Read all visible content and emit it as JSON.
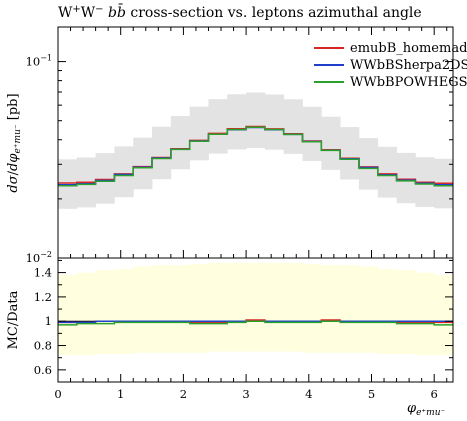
{
  "chart_data": [
    {
      "type": "line",
      "panel": "main",
      "title": "W⁺W⁻bb̄ cross-section vs. leptons azimuthal angle",
      "ylabel": "dσ/dφ_{e⁺mu⁻} [pb]",
      "yscale": "log",
      "ylim": [
        0.01,
        0.15
      ],
      "yticks": [
        {
          "v": 0.1,
          "base": "10",
          "exp": "−1"
        },
        {
          "v": 0.01,
          "base": "10",
          "exp": "−2"
        }
      ],
      "xlim": [
        0,
        6.3
      ],
      "x_edges": [
        0,
        0.3,
        0.6,
        0.9,
        1.2,
        1.5,
        1.8,
        2.1,
        2.4,
        2.7,
        3.0,
        3.3,
        3.6,
        3.9,
        4.2,
        4.5,
        4.8,
        5.1,
        5.4,
        5.7,
        6.0,
        6.3
      ],
      "band": {
        "color": "#e3e3e3",
        "lo": [
          0.0178,
          0.0181,
          0.0189,
          0.0204,
          0.0224,
          0.0252,
          0.0283,
          0.0314,
          0.034,
          0.0357,
          0.0363,
          0.0356,
          0.0339,
          0.0312,
          0.0281,
          0.0251,
          0.0223,
          0.0203,
          0.019,
          0.0182,
          0.0179
        ],
        "hi": [
          0.0318,
          0.0325,
          0.0342,
          0.037,
          0.041,
          0.0466,
          0.0528,
          0.059,
          0.0644,
          0.0682,
          0.0696,
          0.068,
          0.0643,
          0.0589,
          0.0524,
          0.0464,
          0.0408,
          0.0368,
          0.0343,
          0.0326,
          0.032
        ]
      },
      "series": [
        {
          "name": "emubB_homemade",
          "color": "#d62728",
          "values": [
            0.0241,
            0.0243,
            0.0251,
            0.0268,
            0.0292,
            0.0325,
            0.036,
            0.0397,
            0.0431,
            0.0455,
            0.0467,
            0.0454,
            0.0429,
            0.0394,
            0.0356,
            0.0322,
            0.0291,
            0.0268,
            0.0252,
            0.0243,
            0.024
          ]
        },
        {
          "name": "WWbBSherpa2DS",
          "color": "#1f3fcc",
          "values": [
            0.0236,
            0.0239,
            0.0248,
            0.0266,
            0.029,
            0.0323,
            0.0358,
            0.0394,
            0.0427,
            0.045,
            0.0462,
            0.045,
            0.0426,
            0.0392,
            0.0354,
            0.032,
            0.0289,
            0.0265,
            0.0249,
            0.024,
            0.0236
          ]
        },
        {
          "name": "WWbBPOWHEGS",
          "color": "#2ca02c",
          "values": [
            0.0233,
            0.0237,
            0.0246,
            0.0263,
            0.0288,
            0.0321,
            0.0357,
            0.0393,
            0.0427,
            0.0451,
            0.0463,
            0.0451,
            0.0426,
            0.0391,
            0.0353,
            0.0318,
            0.0286,
            0.0263,
            0.0247,
            0.0238,
            0.0233
          ]
        }
      ]
    },
    {
      "type": "line",
      "panel": "ratio",
      "ylabel": "MC/Data",
      "xlabel": "φ_{e⁺mu⁻}",
      "ylim": [
        0.5,
        1.52
      ],
      "yticks": [
        "0.6",
        "0.8",
        "1",
        "1.2",
        "1.4"
      ],
      "xlim": [
        0,
        6.3
      ],
      "xticks": [
        "0",
        "1",
        "2",
        "3",
        "4",
        "5",
        "6"
      ],
      "x_edges": [
        0,
        0.3,
        0.6,
        0.9,
        1.2,
        1.5,
        1.8,
        2.1,
        2.4,
        2.7,
        3.0,
        3.3,
        3.6,
        3.9,
        4.2,
        4.5,
        4.8,
        5.1,
        5.4,
        5.7,
        6.0,
        6.3
      ],
      "band": {
        "color": "#ffffe0",
        "lo": [
          0.72,
          0.72,
          0.73,
          0.73,
          0.74,
          0.74,
          0.74,
          0.74,
          0.75,
          0.75,
          0.75,
          0.75,
          0.75,
          0.74,
          0.74,
          0.74,
          0.74,
          0.73,
          0.73,
          0.72,
          0.72
        ],
        "hi": [
          1.38,
          1.4,
          1.42,
          1.43,
          1.45,
          1.46,
          1.46,
          1.47,
          1.48,
          1.48,
          1.48,
          1.48,
          1.48,
          1.47,
          1.46,
          1.46,
          1.45,
          1.43,
          1.42,
          1.4,
          1.38
        ]
      },
      "series": [
        {
          "name": "emubB_homemade",
          "color": "#d62728",
          "values": [
            0.99,
            0.99,
            1.0,
            1.0,
            1.0,
            1.0,
            1.0,
            0.99,
            0.99,
            1.0,
            1.01,
            1.0,
            1.0,
            1.0,
            1.01,
            1.0,
            1.0,
            1.0,
            0.99,
            0.99,
            0.99
          ]
        },
        {
          "name": "WWbBSherpa2DS",
          "color": "#1f3fcc",
          "values": [
            0.99,
            0.99,
            1.0,
            1.0,
            1.0,
            1.0,
            1.0,
            1.0,
            1.0,
            1.0,
            1.0,
            1.0,
            1.0,
            1.0,
            1.0,
            1.0,
            1.0,
            1.0,
            1.0,
            1.0,
            1.0
          ]
        },
        {
          "name": "WWbBPOWHEGS",
          "color": "#2ca02c",
          "values": [
            0.97,
            0.98,
            0.98,
            0.99,
            0.99,
            0.99,
            0.99,
            0.98,
            0.98,
            0.99,
            1.0,
            0.99,
            0.99,
            0.99,
            1.0,
            0.99,
            0.99,
            0.99,
            0.98,
            0.98,
            0.97
          ]
        }
      ]
    }
  ]
}
